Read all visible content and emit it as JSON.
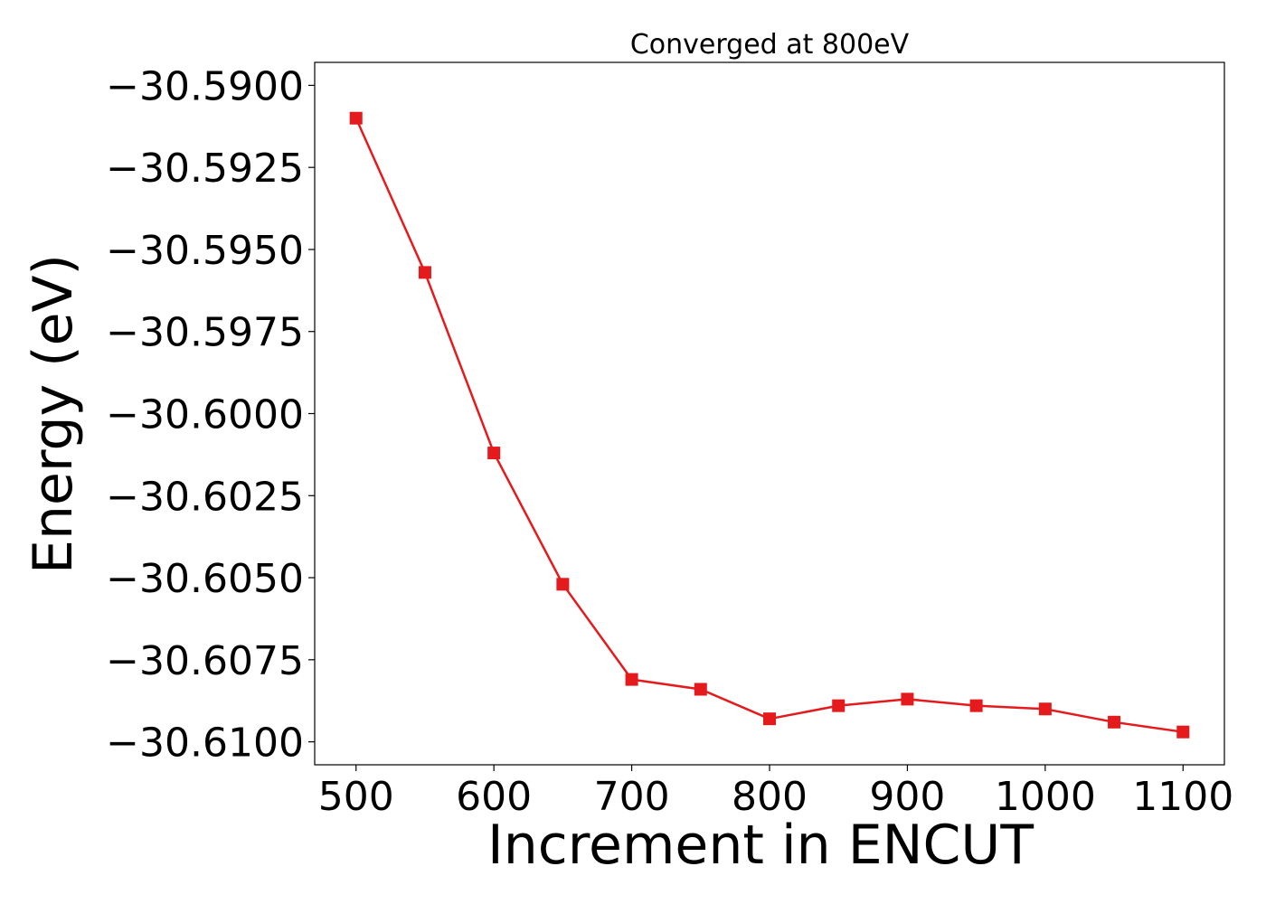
{
  "chart_data": {
    "type": "line",
    "title": "Converged at 800eV",
    "xlabel": "Increment in ENCUT",
    "ylabel": "Energy (eV)",
    "xlim": [
      470,
      1130
    ],
    "ylim": [
      -30.6107,
      -30.5893
    ],
    "xticks": [
      500,
      600,
      700,
      800,
      900,
      1000,
      1100
    ],
    "xtick_labels": [
      "500",
      "600",
      "700",
      "800",
      "900",
      "1000",
      "1100"
    ],
    "yticks": [
      -30.59,
      -30.5925,
      -30.595,
      -30.5975,
      -30.6,
      -30.6025,
      -30.605,
      -30.6075,
      -30.61
    ],
    "ytick_labels": [
      "−30.5900",
      "−30.5925",
      "−30.5950",
      "−30.5975",
      "−30.6000",
      "−30.6025",
      "−30.6050",
      "−30.6075",
      "−30.6100"
    ],
    "grid": false,
    "series": [
      {
        "color": "#e41a1c",
        "marker": "square",
        "x": [
          500,
          550,
          600,
          650,
          700,
          750,
          800,
          850,
          900,
          950,
          1000,
          1050,
          1100
        ],
        "y": [
          -30.591,
          -30.5957,
          -30.6012,
          -30.6052,
          -30.6081,
          -30.6084,
          -30.6093,
          -30.6089,
          -30.6087,
          -30.6089,
          -30.609,
          -30.6094,
          -30.6097
        ]
      }
    ]
  }
}
